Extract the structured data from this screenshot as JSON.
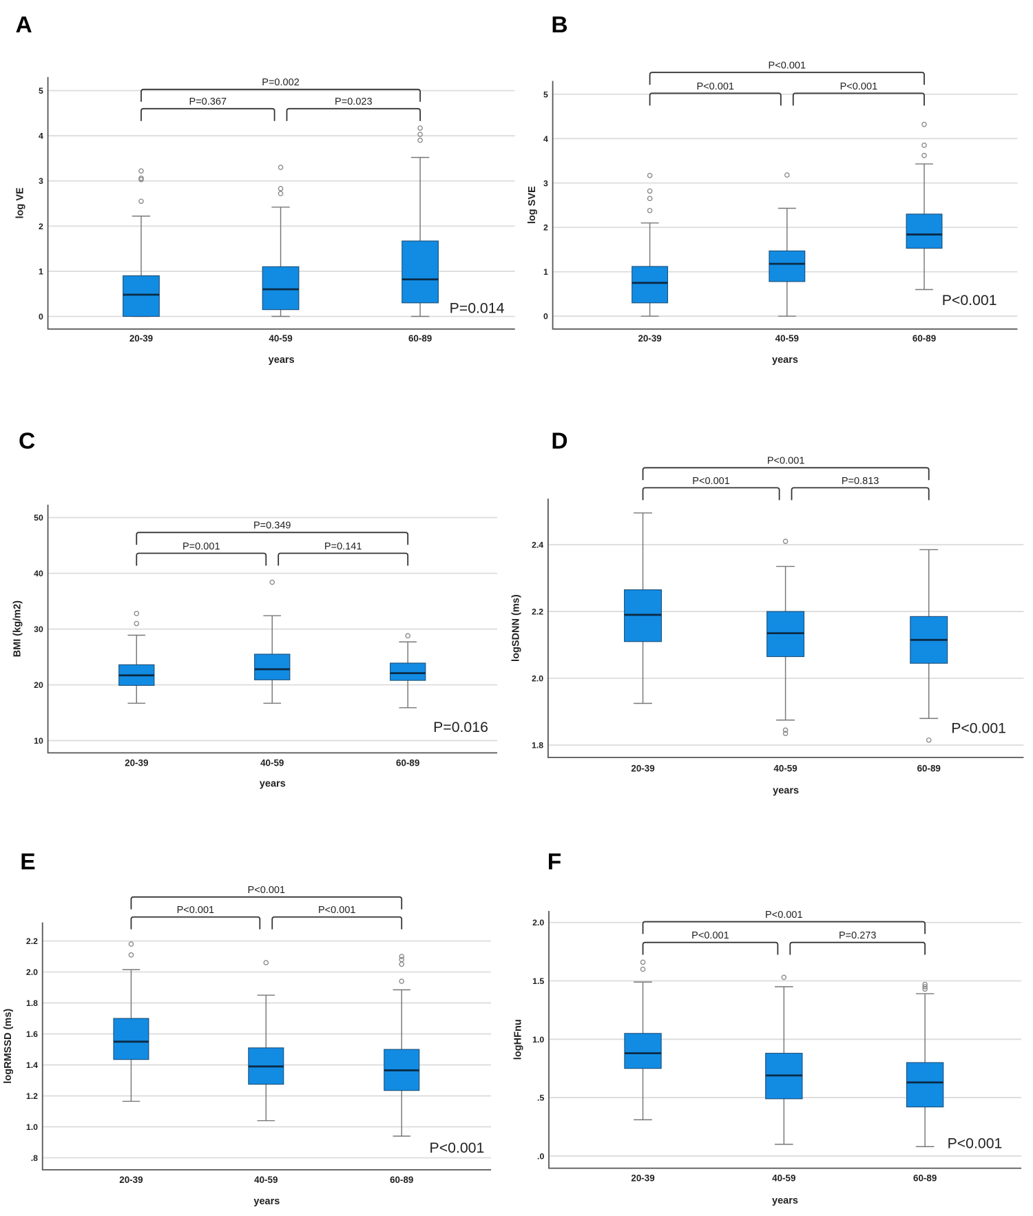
{
  "chart_data": [
    {
      "type": "box",
      "panel": "A",
      "ylabel": "log VE",
      "xlabel": "years",
      "categories": [
        "20-39",
        "40-59",
        "60-89"
      ],
      "yticks": [
        {
          "v": 0,
          "label": "0"
        },
        {
          "v": 1,
          "label": "1"
        },
        {
          "v": 2,
          "label": "2"
        },
        {
          "v": 3,
          "label": "3"
        },
        {
          "v": 4,
          "label": "4"
        },
        {
          "v": 5,
          "label": "5"
        }
      ],
      "ylim": [
        -0.28,
        5.3
      ],
      "boxes": [
        {
          "min": 0,
          "q1": 0,
          "median": 0.48,
          "q3": 0.9,
          "max": 2.22,
          "outliers": [
            2.55,
            3.03,
            3.06,
            3.22
          ]
        },
        {
          "min": 0,
          "q1": 0.15,
          "median": 0.6,
          "q3": 1.1,
          "max": 2.42,
          "outliers": [
            2.72,
            2.83,
            3.3
          ]
        },
        {
          "min": 0,
          "q1": 0.3,
          "median": 0.82,
          "q3": 1.67,
          "max": 3.52,
          "outliers": [
            3.9,
            4.03,
            4.17
          ]
        }
      ],
      "comparisons": [
        {
          "from": 0,
          "to": 1,
          "label": "P=0.367"
        },
        {
          "from": 1,
          "to": 2,
          "label": "P=0.023"
        },
        {
          "from": 0,
          "to": 2,
          "label": "P=0.002"
        }
      ],
      "overall_p": "P=0.014"
    },
    {
      "type": "box",
      "panel": "B",
      "ylabel": "log SVE",
      "xlabel": "years",
      "categories": [
        "20-39",
        "40-59",
        "60-89"
      ],
      "yticks": [
        {
          "v": 0,
          "label": "0"
        },
        {
          "v": 1,
          "label": "1"
        },
        {
          "v": 2,
          "label": "2"
        },
        {
          "v": 3,
          "label": "3"
        },
        {
          "v": 4,
          "label": "4"
        },
        {
          "v": 5,
          "label": "5"
        }
      ],
      "ylim": [
        -0.29,
        5.3
      ],
      "boxes": [
        {
          "min": 0,
          "q1": 0.3,
          "median": 0.75,
          "q3": 1.12,
          "max": 2.1,
          "outliers": [
            2.38,
            2.65,
            2.82,
            3.17
          ]
        },
        {
          "min": 0,
          "q1": 0.78,
          "median": 1.18,
          "q3": 1.47,
          "max": 2.43,
          "outliers": [
            3.18
          ]
        },
        {
          "min": 0.6,
          "q1": 1.53,
          "median": 1.84,
          "q3": 2.3,
          "max": 3.43,
          "outliers": [
            3.62,
            3.85,
            4.32
          ]
        }
      ],
      "comparisons": [
        {
          "from": 0,
          "to": 1,
          "label": "P<0.001"
        },
        {
          "from": 1,
          "to": 2,
          "label": "P<0.001"
        },
        {
          "from": 0,
          "to": 2,
          "label": "P<0.001"
        }
      ],
      "overall_p": "P<0.001"
    },
    {
      "type": "box",
      "panel": "C",
      "ylabel": "BMI (kg/m2)",
      "xlabel": "years",
      "categories": [
        "20-39",
        "40-59",
        "60-89"
      ],
      "yticks": [
        {
          "v": 10,
          "label": "10"
        },
        {
          "v": 20,
          "label": "20"
        },
        {
          "v": 30,
          "label": "30"
        },
        {
          "v": 40,
          "label": "40"
        },
        {
          "v": 50,
          "label": "50"
        }
      ],
      "ylim": [
        7.8,
        52.3
      ],
      "boxes": [
        {
          "min": 16.7,
          "q1": 19.9,
          "median": 21.7,
          "q3": 23.6,
          "max": 28.9,
          "outliers": [
            31,
            32.8
          ]
        },
        {
          "min": 16.7,
          "q1": 20.9,
          "median": 22.8,
          "q3": 25.5,
          "max": 32.4,
          "outliers": [
            38.4
          ]
        },
        {
          "min": 15.9,
          "q1": 20.8,
          "median": 22.1,
          "q3": 23.9,
          "max": 27.7,
          "outliers": [
            28.8
          ]
        }
      ],
      "comparisons": [
        {
          "from": 0,
          "to": 1,
          "label": "P=0.001"
        },
        {
          "from": 1,
          "to": 2,
          "label": "P=0.141"
        },
        {
          "from": 0,
          "to": 2,
          "label": "P=0.349"
        }
      ],
      "overall_p": "P=0.016"
    },
    {
      "type": "box",
      "panel": "D",
      "ylabel": "logSDNN (ms)",
      "xlabel": "years",
      "categories": [
        "20-39",
        "40-59",
        "60-89"
      ],
      "yticks": [
        {
          "v": 1.8,
          "label": "1.8"
        },
        {
          "v": 2.0,
          "label": "2.0"
        },
        {
          "v": 2.2,
          "label": "2.2"
        },
        {
          "v": 2.4,
          "label": "2.4"
        }
      ],
      "ylim": [
        1.763,
        2.538
      ],
      "boxes": [
        {
          "min": 1.925,
          "q1": 2.11,
          "median": 2.19,
          "q3": 2.265,
          "max": 2.495,
          "outliers": []
        },
        {
          "min": 1.875,
          "q1": 2.065,
          "median": 2.135,
          "q3": 2.2,
          "max": 2.335,
          "outliers": [
            1.835,
            1.845,
            2.41
          ]
        },
        {
          "min": 1.88,
          "q1": 2.045,
          "median": 2.115,
          "q3": 2.185,
          "max": 2.385,
          "outliers": [
            1.815
          ]
        }
      ],
      "comparisons": [
        {
          "from": 0,
          "to": 1,
          "label": "P<0.001"
        },
        {
          "from": 1,
          "to": 2,
          "label": "P=0.813"
        },
        {
          "from": 0,
          "to": 2,
          "label": "P<0.001"
        }
      ],
      "overall_p": "P<0.001"
    },
    {
      "type": "box",
      "panel": "E",
      "ylabel": "logRMSSD (ms)",
      "xlabel": "years",
      "categories": [
        "20-39",
        "40-59",
        "60-89"
      ],
      "yticks": [
        {
          "v": 0.8,
          "label": ".8"
        },
        {
          "v": 1.0,
          "label": "1.0"
        },
        {
          "v": 1.2,
          "label": "1.2"
        },
        {
          "v": 1.4,
          "label": "1.4"
        },
        {
          "v": 1.6,
          "label": "1.6"
        },
        {
          "v": 1.8,
          "label": "1.8"
        },
        {
          "v": 2.0,
          "label": "2.0"
        },
        {
          "v": 2.2,
          "label": "2.2"
        }
      ],
      "ylim": [
        0.723,
        2.32
      ],
      "boxes": [
        {
          "min": 1.165,
          "q1": 1.435,
          "median": 1.55,
          "q3": 1.7,
          "max": 2.015,
          "outliers": [
            2.11,
            2.18
          ]
        },
        {
          "min": 1.04,
          "q1": 1.275,
          "median": 1.39,
          "q3": 1.51,
          "max": 1.85,
          "outliers": [
            2.06
          ]
        },
        {
          "min": 0.94,
          "q1": 1.235,
          "median": 1.365,
          "q3": 1.5,
          "max": 1.885,
          "outliers": [
            1.94,
            2.05,
            2.08,
            2.1
          ]
        }
      ],
      "comparisons": [
        {
          "from": 0,
          "to": 1,
          "label": "P<0.001"
        },
        {
          "from": 1,
          "to": 2,
          "label": "P<0.001"
        },
        {
          "from": 0,
          "to": 2,
          "label": "P<0.001"
        }
      ],
      "overall_p": "P<0.001"
    },
    {
      "type": "box",
      "panel": "F",
      "ylabel": "logHFnu",
      "xlabel": "years",
      "categories": [
        "20-39",
        "40-59",
        "60-89"
      ],
      "yticks": [
        {
          "v": 0,
          "label": ".0"
        },
        {
          "v": 0.5,
          "label": ".5"
        },
        {
          "v": 1.0,
          "label": "1.0"
        },
        {
          "v": 1.5,
          "label": "1.5"
        },
        {
          "v": 2.0,
          "label": "2.0"
        }
      ],
      "ylim": [
        -0.105,
        2.1
      ],
      "boxes": [
        {
          "min": 0.31,
          "q1": 0.75,
          "median": 0.88,
          "q3": 1.05,
          "max": 1.49,
          "outliers": [
            1.6,
            1.66
          ]
        },
        {
          "min": 0.1,
          "q1": 0.49,
          "median": 0.69,
          "q3": 0.88,
          "max": 1.45,
          "outliers": [
            1.53
          ]
        },
        {
          "min": 0.08,
          "q1": 0.42,
          "median": 0.63,
          "q3": 0.8,
          "max": 1.39,
          "outliers": [
            1.43,
            1.45,
            1.47
          ]
        }
      ],
      "comparisons": [
        {
          "from": 0,
          "to": 1,
          "label": "P<0.001"
        },
        {
          "from": 1,
          "to": 2,
          "label": "P=0.273"
        },
        {
          "from": 0,
          "to": 2,
          "label": "P<0.001"
        }
      ],
      "overall_p": "P<0.001"
    }
  ],
  "colors": {
    "box": "#128ce3",
    "median": "#0b2a44"
  }
}
